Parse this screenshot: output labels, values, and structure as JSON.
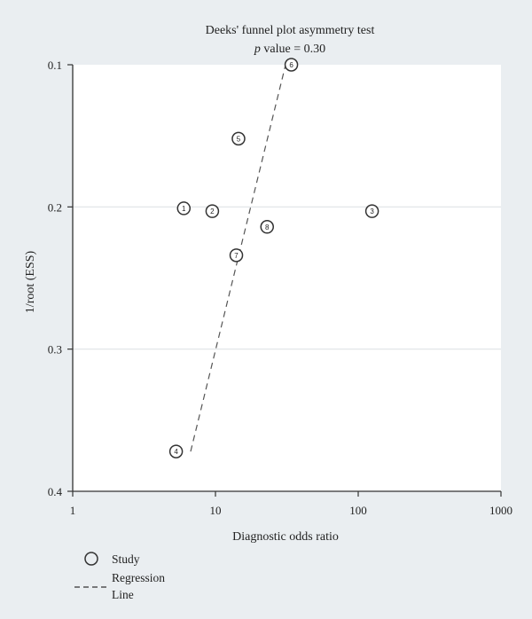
{
  "chart_data": {
    "type": "scatter",
    "title": "Deeks' funnel plot asymmetry test",
    "subtitle_italic": "p",
    "subtitle_rest": " value = 0.30",
    "xlabel": "Diagnostic odds ratio",
    "ylabel": "1/root (ESS)",
    "x_scale": "log",
    "xlim": [
      1,
      1000
    ],
    "ylim": [
      0.1,
      0.4
    ],
    "y_inverted": true,
    "x_ticks": [
      1,
      10,
      100,
      1000
    ],
    "x_tick_labels": [
      "1",
      "10",
      "100",
      "1000"
    ],
    "y_ticks": [
      0.1,
      0.2,
      0.3,
      0.4
    ],
    "y_tick_labels": [
      "0.1",
      "0.2",
      "0.3",
      "0.4"
    ],
    "grid": "horizontal",
    "points": [
      {
        "label": "1",
        "x": 6,
        "y": 0.201
      },
      {
        "label": "2",
        "x": 9.5,
        "y": 0.203
      },
      {
        "label": "3",
        "x": 125,
        "y": 0.203
      },
      {
        "label": "4",
        "x": 5.3,
        "y": 0.372
      },
      {
        "label": "5",
        "x": 14.5,
        "y": 0.152
      },
      {
        "label": "6",
        "x": 34,
        "y": 0.1
      },
      {
        "label": "7",
        "x": 14,
        "y": 0.234
      },
      {
        "label": "8",
        "x": 23,
        "y": 0.214
      }
    ],
    "regression_line": {
      "start": {
        "x": 6.7,
        "y": 0.372
      },
      "end": {
        "x": 31,
        "y": 0.1
      }
    },
    "legend": {
      "position": "bottom-left",
      "items": [
        {
          "symbol": "circle",
          "label": "Study"
        },
        {
          "symbol": "dashed-line",
          "label_line1": "Regression",
          "label_line2": "Line"
        }
      ]
    },
    "colors": {
      "background": "#eaeef1",
      "plot_area": "#ffffff",
      "grid": "#dfe3e6",
      "ink": "#333333"
    }
  }
}
